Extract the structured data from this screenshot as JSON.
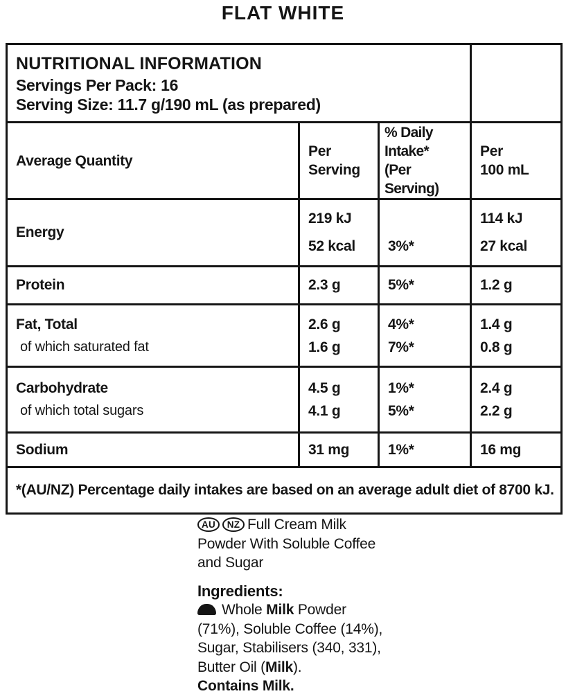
{
  "title": "FLAT WHITE",
  "table": {
    "header": {
      "title": "NUTRITIONAL INFORMATION",
      "servings_per_pack": "Servings Per Pack: 16",
      "serving_size": "Serving Size: 11.7 g/190 mL (as prepared)"
    },
    "columns": {
      "quantity": "Average Quantity",
      "per_serving": [
        "Per",
        "Serving"
      ],
      "daily_intake": [
        "% Daily",
        "Intake*",
        "(Per Serving)"
      ],
      "per_100ml": [
        "Per",
        "100 mL"
      ]
    },
    "rows": {
      "energy": {
        "label": "Energy",
        "per_serving": [
          "219 kJ",
          "52 kcal"
        ],
        "daily_intake": [
          "",
          "3%*"
        ],
        "per_100ml": [
          "114 kJ",
          "27 kcal"
        ]
      },
      "protein": {
        "label": "Protein",
        "per_serving": "2.3 g",
        "daily_intake": "5%*",
        "per_100ml": "1.2 g"
      },
      "fat": {
        "label": "Fat, Total",
        "sublabel": "of which saturated fat",
        "per_serving": [
          "2.6 g",
          "1.6 g"
        ],
        "daily_intake": [
          "4%*",
          "7%*"
        ],
        "per_100ml": [
          "1.4 g",
          "0.8 g"
        ]
      },
      "carbohydrate": {
        "label": "Carbohydrate",
        "sublabel": "of which total sugars",
        "per_serving": [
          "4.5 g",
          "4.1 g"
        ],
        "daily_intake": [
          "1%*",
          "5%*"
        ],
        "per_100ml": [
          "2.4 g",
          "2.2 g"
        ]
      },
      "sodium": {
        "label": "Sodium",
        "per_serving": "31 mg",
        "daily_intake": "1%*",
        "per_100ml": "16 mg"
      }
    },
    "footnote": "*(AU/NZ) Percentage daily intakes are based on an average adult diet of 8700 kJ."
  },
  "description": {
    "badges": [
      "AU",
      "NZ"
    ],
    "line1": "Full Cream Milk",
    "line2": "Powder With Soluble Coffee",
    "line3": "and Sugar"
  },
  "ingredients": {
    "heading": "Ingredients:",
    "icon": "milk-allergen-icon",
    "segments": [
      {
        "text": "Whole ",
        "bold": false
      },
      {
        "text": "Milk",
        "bold": true
      },
      {
        "text": " Powder",
        "bold": false,
        "br": true
      },
      {
        "text": "(71%), Soluble Coffee (14%),",
        "bold": false,
        "br": true
      },
      {
        "text": "Sugar, Stabilisers (340, 331),",
        "bold": false,
        "br": true
      },
      {
        "text": "Butter Oil (",
        "bold": false
      },
      {
        "text": "Milk",
        "bold": true
      },
      {
        "text": ").",
        "bold": false
      }
    ],
    "contains": "Contains Milk."
  },
  "colors": {
    "text": "#151515",
    "border": "#151515",
    "background": "#ffffff"
  }
}
